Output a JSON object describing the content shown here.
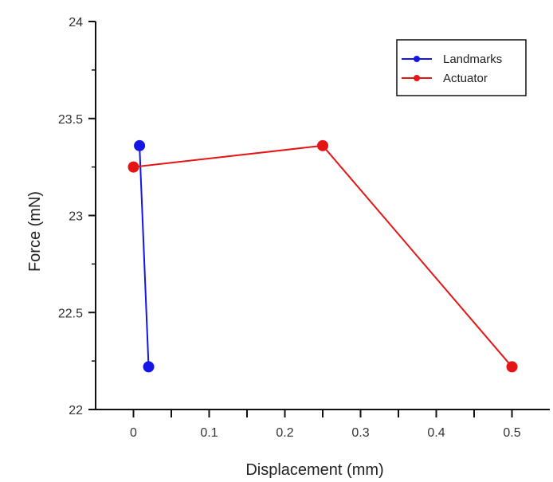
{
  "chart_data": {
    "type": "line",
    "title": "",
    "xlabel": "Displacement (mm)",
    "ylabel": "Force (mN)",
    "xlim": [
      -0.05,
      0.55
    ],
    "ylim": [
      22,
      24
    ],
    "x_ticks": [
      0,
      0.1,
      0.2,
      0.3,
      0.4,
      0.5
    ],
    "x_tick_labels": [
      "0",
      "0.1",
      "0.2",
      "0.3",
      "0.4",
      "0.5"
    ],
    "y_ticks": [
      22,
      22.5,
      23,
      23.5,
      24
    ],
    "y_tick_labels": [
      "22",
      "22.5",
      "23",
      "23.5",
      "24"
    ],
    "grid": false,
    "legend_position": "top-right",
    "series": [
      {
        "name": "Landmarks",
        "color": "#1515e6",
        "x": [
          0.008,
          0.02
        ],
        "y": [
          23.36,
          22.22
        ]
      },
      {
        "name": "Actuator",
        "color": "#e61515",
        "x": [
          0.0,
          0.25,
          0.5
        ],
        "y": [
          23.25,
          23.36,
          22.22
        ]
      }
    ]
  }
}
